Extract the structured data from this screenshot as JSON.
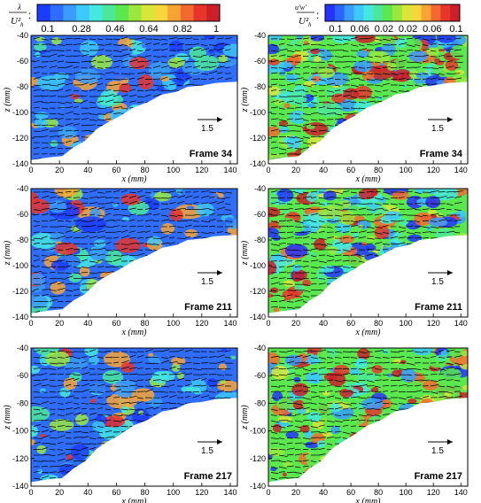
{
  "figure": {
    "colorbars": [
      {
        "label_symbol": "λ",
        "label_denominator": "U²",
        "label_subscript": "h",
        "ticks": [
          "0.1",
          "0.28",
          "0.46",
          "0.64",
          "0.82",
          "1"
        ],
        "colors": [
          "#1a3cff",
          "#2f6dff",
          "#3a9cff",
          "#3dc8ff",
          "#45e8e0",
          "#4be79a",
          "#5be84f",
          "#9ae73f",
          "#d8e63a",
          "#f6d63a",
          "#f8a435",
          "#f36a31",
          "#e8352c",
          "#cc1f2a"
        ]
      },
      {
        "label_top": "u'w'",
        "label_denominator": "U²",
        "label_subscript": "h",
        "ticks": [
          "0.1",
          "0.06",
          "0.02",
          "0.02",
          "0.06",
          "0.1"
        ],
        "colors": [
          "#2432ff",
          "#2c64ff",
          "#3a9cff",
          "#3dc8ff",
          "#45e8e0",
          "#4be79a",
          "#5be84f",
          "#9ae73f",
          "#d8e63a",
          "#f6d63a",
          "#f8a435",
          "#f36a31",
          "#e8352c",
          "#cc1f2a"
        ]
      }
    ],
    "axis_labels": {
      "x": "x (mm)",
      "y": "z (mm)"
    },
    "reference_vector_label": "1.5",
    "frames": [
      "Frame 34",
      "Frame 211",
      "Frame 217"
    ]
  },
  "chart_data": [
    {
      "type": "heatmap",
      "field": "swirl",
      "panel": "left",
      "frame": "Frame 34",
      "xlim": [
        0,
        145
      ],
      "ylim": [
        -140,
        -40
      ],
      "xticks": [
        0,
        20,
        40,
        60,
        80,
        100,
        120,
        140
      ],
      "yticks": [
        -140,
        -120,
        -100,
        -80,
        -60,
        -40
      ],
      "reference_vector": "1.5"
    },
    {
      "type": "heatmap",
      "field": "reynolds_stress",
      "panel": "right",
      "frame": "Frame 34",
      "xlim": [
        0,
        145
      ],
      "ylim": [
        -140,
        -40
      ],
      "xticks": [
        0,
        20,
        40,
        60,
        80,
        100,
        120,
        140
      ],
      "yticks": [
        -140,
        -120,
        -100,
        -80,
        -60,
        -40
      ],
      "reference_vector": "1.5"
    },
    {
      "type": "heatmap",
      "field": "swirl",
      "panel": "left",
      "frame": "Frame 211",
      "xlim": [
        0,
        145
      ],
      "ylim": [
        -140,
        -40
      ],
      "xticks": [
        0,
        20,
        40,
        60,
        80,
        100,
        120,
        140
      ],
      "yticks": [
        -140,
        -120,
        -100,
        -80,
        -60,
        -40
      ],
      "reference_vector": "1.5"
    },
    {
      "type": "heatmap",
      "field": "reynolds_stress",
      "panel": "right",
      "frame": "Frame 211",
      "xlim": [
        0,
        145
      ],
      "ylim": [
        -140,
        -40
      ],
      "xticks": [
        0,
        20,
        40,
        60,
        80,
        100,
        120,
        140
      ],
      "yticks": [
        -140,
        -120,
        -100,
        -80,
        -60,
        -40
      ],
      "reference_vector": "1.5"
    },
    {
      "type": "heatmap",
      "field": "swirl",
      "panel": "left",
      "frame": "Frame 217",
      "xlim": [
        0,
        145
      ],
      "ylim": [
        -140,
        -40
      ],
      "xticks": [
        0,
        20,
        40,
        60,
        80,
        100,
        120,
        140
      ],
      "yticks": [
        -140,
        -120,
        -100,
        -80,
        -60,
        -40
      ],
      "reference_vector": "1.5"
    },
    {
      "type": "heatmap",
      "field": "reynolds_stress",
      "panel": "right",
      "frame": "Frame 217",
      "xlim": [
        0,
        145
      ],
      "ylim": [
        -140,
        -40
      ],
      "xticks": [
        0,
        20,
        40,
        60,
        80,
        100,
        120,
        140
      ],
      "yticks": [
        -140,
        -120,
        -100,
        -80,
        -60,
        -40
      ],
      "reference_vector": "1.5"
    }
  ]
}
